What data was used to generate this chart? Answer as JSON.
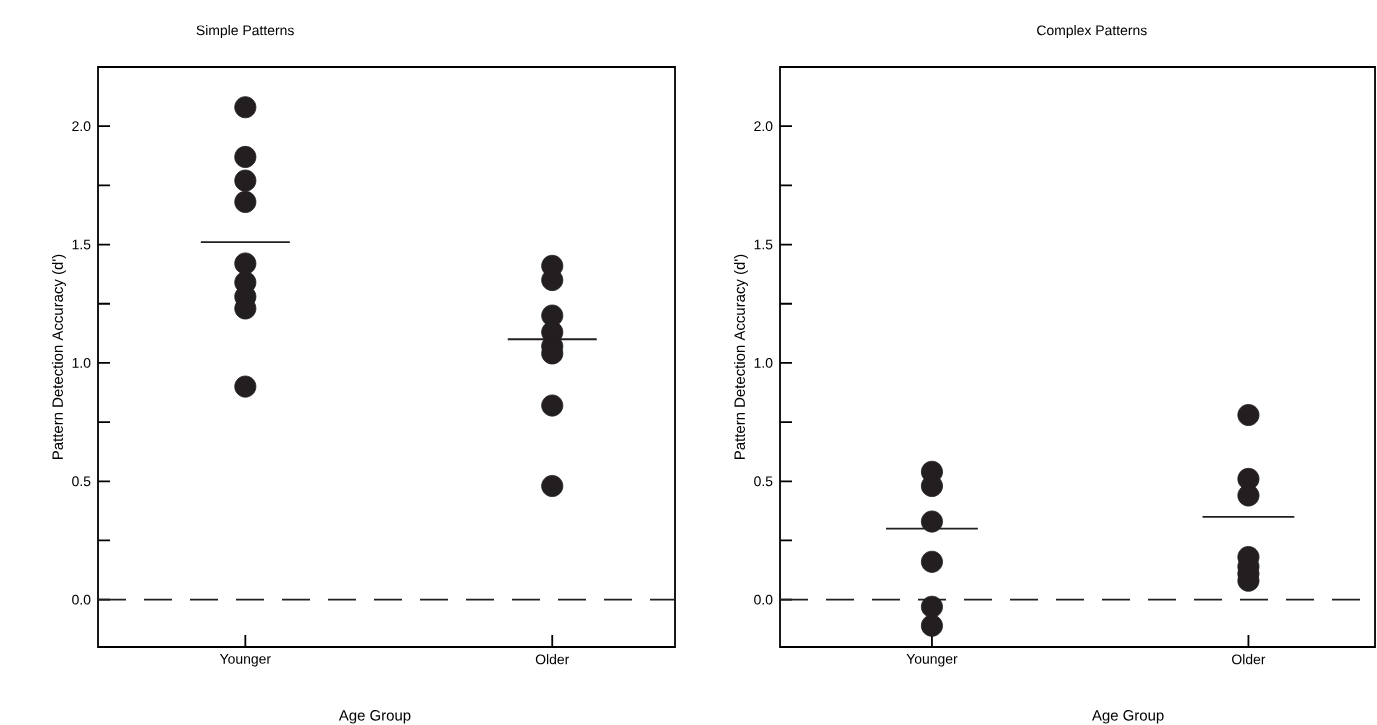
{
  "chart_data": [
    {
      "type": "scatter",
      "title": "Simple Patterns",
      "xlabel": "Age Group",
      "ylabel": "Pattern Detection Accuracy (d')",
      "categories": [
        "Younger",
        "Older"
      ],
      "marker": "circle",
      "ylim": [
        -0.2,
        2.25
      ],
      "yticks": [
        {
          "value": 0,
          "label": "0.0"
        },
        {
          "value": 0.25,
          "label": null
        },
        {
          "value": 0.5,
          "label": "0.5"
        },
        {
          "value": 0.75,
          "label": null
        },
        {
          "value": 1,
          "label": "1.0"
        },
        {
          "value": 1.25,
          "label": null
        },
        {
          "value": 1.5,
          "label": "1.5"
        },
        {
          "value": 1.75,
          "label": null
        },
        {
          "value": 2,
          "label": "2.0"
        }
      ],
      "ref_lines": [
        {
          "axis": "y",
          "value": 0,
          "line_style": "dashed",
          "color": "#231f20"
        }
      ],
      "series": [
        {
          "color": "#231f20",
          "x": [
            "Younger",
            "Younger",
            "Younger",
            "Younger",
            "Younger",
            "Younger",
            "Younger",
            "Younger",
            "Younger",
            "Older",
            "Older",
            "Older",
            "Older",
            "Older",
            "Older",
            "Older",
            "Older"
          ],
          "values": [
            2.08,
            1.87,
            1.77,
            1.68,
            1.42,
            1.34,
            1.28,
            1.23,
            0.9,
            1.41,
            1.35,
            1.2,
            1.13,
            1.07,
            1.04,
            0.82,
            0.48
          ]
        },
        {
          "type": "box",
          "color": "#231f20",
          "boxes": [
            {
              "low": 1.51,
              "q1": 1.51,
              "median": 1.51,
              "q3": 1.51,
              "high": 1.51
            },
            {
              "low": 1.1,
              "q1": 1.1,
              "median": 1.1,
              "q3": 1.1,
              "high": 1.1
            }
          ]
        }
      ]
    },
    {
      "type": "scatter",
      "title": "Complex Patterns",
      "xlabel": "Age Group",
      "ylabel": "Pattern Detection Accuracy (d')",
      "categories": [
        "Younger",
        "Older"
      ],
      "marker": "circle",
      "ylim": [
        -0.2,
        2.25
      ],
      "yticks": [
        {
          "value": 0,
          "label": "0.0"
        },
        {
          "value": 0.25,
          "label": null
        },
        {
          "value": 0.5,
          "label": "0.5"
        },
        {
          "value": 0.75,
          "label": null
        },
        {
          "value": 1,
          "label": "1.0"
        },
        {
          "value": 1.25,
          "label": null
        },
        {
          "value": 1.5,
          "label": "1.5"
        },
        {
          "value": 1.75,
          "label": null
        },
        {
          "value": 2,
          "label": "2.0"
        }
      ],
      "ref_lines": [
        {
          "axis": "y",
          "value": 0,
          "line_style": "dashed",
          "color": "#231f20"
        }
      ],
      "series": [
        {
          "color": "#231f20",
          "x": [
            "Younger",
            "Younger",
            "Younger",
            "Younger",
            "Younger",
            "Younger",
            "Older",
            "Older",
            "Older",
            "Older",
            "Older",
            "Older",
            "Older"
          ],
          "values": [
            0.54,
            0.48,
            0.33,
            0.16,
            -0.03,
            -0.11,
            0.78,
            0.51,
            0.44,
            0.18,
            0.14,
            0.11,
            0.08
          ]
        },
        {
          "type": "box",
          "color": "#231f20",
          "boxes": [
            {
              "low": 0.3,
              "q1": 0.3,
              "median": 0.3,
              "q3": 0.3,
              "high": 0.3
            },
            {
              "low": 0.35,
              "q1": 0.35,
              "median": 0.35,
              "q3": 0.35,
              "high": 0.35
            }
          ]
        }
      ]
    }
  ]
}
